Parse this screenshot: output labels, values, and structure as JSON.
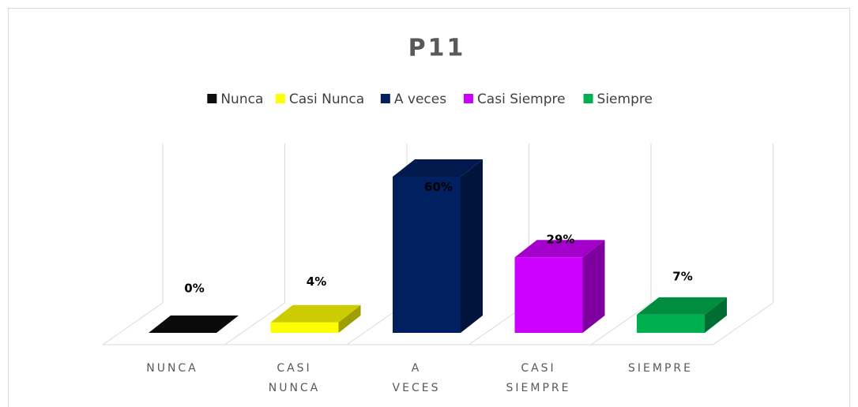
{
  "chart_data": {
    "type": "bar3d",
    "title": "P11",
    "legend": [
      "Nunca",
      "Casi Nunca",
      "A veces",
      "Casi Siempre",
      "Siempre"
    ],
    "categories": [
      "NUNCA",
      "CASI NUNCA",
      "A VECES",
      "CASI SIEMPRE",
      "SIEMPRE"
    ],
    "values": [
      0,
      4,
      60,
      29,
      7
    ],
    "value_labels": [
      "0%",
      "4%",
      "60%",
      "29%",
      "7%"
    ],
    "colors": [
      "#0d0d0d",
      "#ffff00",
      "#002060",
      "#cc00ff",
      "#00b050"
    ],
    "legend_position": "top"
  }
}
